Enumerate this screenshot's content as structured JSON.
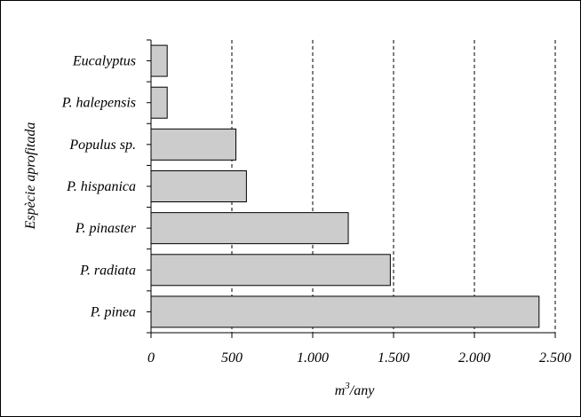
{
  "chart_data": {
    "type": "bar",
    "orientation": "horizontal",
    "categories": [
      "Eucalyptus",
      "P. halepensis",
      "Populus sp.",
      "P. hispanica",
      "P. pinaster",
      "P. radiata",
      "P. pinea"
    ],
    "values": [
      100,
      100,
      525,
      590,
      1220,
      1480,
      2400
    ],
    "xlabel_main": "m",
    "xlabel_sup": "3",
    "xlabel_tail": "/any",
    "ylabel": "Espècie aprofitada",
    "xlim": [
      0,
      2500
    ],
    "x_ticks": [
      0,
      500,
      1000,
      1500,
      2000,
      2500
    ],
    "x_tick_labels": [
      "0",
      "500",
      "1.000",
      "1.500",
      "2.000",
      "2.500"
    ],
    "grid": "vertical dashed",
    "bar_color": "#cccccc",
    "bar_edge_color": "#000000"
  }
}
